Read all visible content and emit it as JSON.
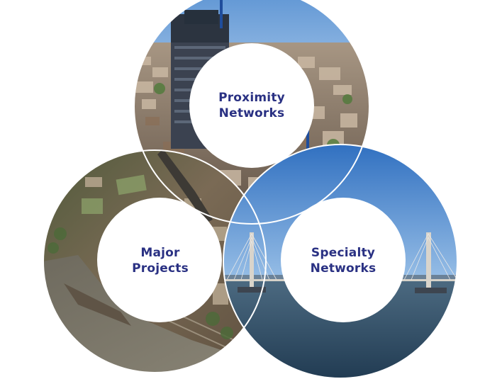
{
  "segments": [
    {
      "id": "proximity",
      "line1": "Proximity",
      "line2": "Networks",
      "scene": "city"
    },
    {
      "id": "major",
      "line1": "Major",
      "line2": "Projects",
      "scene": "aerial-riverside"
    },
    {
      "id": "specialty",
      "line1": "Specialty",
      "line2": "Networks",
      "scene": "bridge"
    }
  ],
  "colors": {
    "label_text": "#2a3183",
    "background": "#ffffff",
    "ring_line": "#ffffff"
  }
}
